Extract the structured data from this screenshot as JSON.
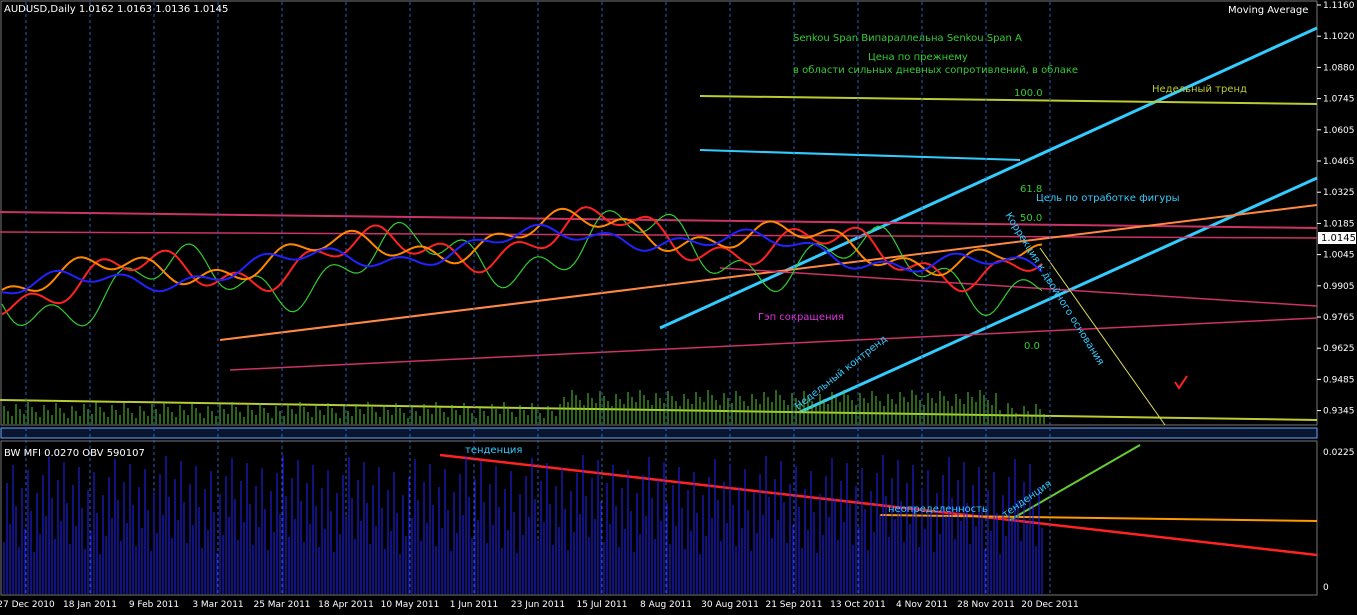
{
  "header": {
    "symbol": "AUDUSD,Daily  1.0162 1.0163 1.0136 1.0145",
    "indicator": "Moving Average"
  },
  "price_axis": {
    "ticks": [
      "1.1160",
      "1.1020",
      "1.0880",
      "1.0745",
      "1.0605",
      "1.0465",
      "1.0325",
      "1.0185",
      "1.0045",
      "0.9905",
      "0.9765",
      "0.9625",
      "0.9485",
      "0.9345"
    ],
    "current": "1.0145"
  },
  "lower_panel": {
    "label": "BW MFI 0.0270  OBV 590107",
    "ticks": [
      "0.0225",
      "0"
    ],
    "annotations": [
      "тенденция",
      "неопределенность",
      "тенденция"
    ]
  },
  "date_axis": [
    "27 Dec 2010",
    "18 Jan 2011",
    "9 Feb 2011",
    "3 Mar 2011",
    "25 Mar 2011",
    "18 Apr 2011",
    "10 May 2011",
    "1 Jun 2011",
    "23 Jun 2011",
    "15 Jul 2011",
    "8 Aug 2011",
    "30 Aug 2011",
    "21 Sep 2011",
    "13 Oct 2011",
    "4 Nov 2011",
    "28 Nov 2011",
    "20 Dec 2011"
  ],
  "annotations": [
    "Senkou Span Bипараллельна Senkou Span A",
    "Цена по прежнему",
    "в области сильных дневных сопротивлений, в облаке",
    "Недельный тренд",
    "Цель по отработке фигуры",
    "100.0",
    "61.8",
    "50.0",
    "0.0",
    "Гэп сокращения",
    "Недельный контренд",
    "Коррекция к двойного основания"
  ]
}
